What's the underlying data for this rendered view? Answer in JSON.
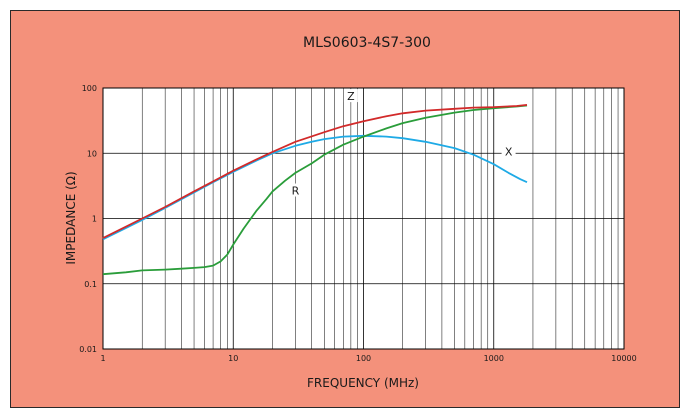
{
  "chart_data": {
    "type": "line",
    "title": "MLS0603-4S7-300",
    "xlabel": "FREQUENCY (MHz)",
    "ylabel": "IMPEDANCE (Ω)",
    "x_scale": "log",
    "y_scale": "log",
    "xlim": [
      1,
      10000
    ],
    "ylim": [
      0.01,
      100
    ],
    "x_ticks": [
      {
        "value": 1,
        "label": "1"
      },
      {
        "value": 10,
        "label": "10"
      },
      {
        "value": 100,
        "label": "100"
      },
      {
        "value": 1000,
        "label": "1000"
      },
      {
        "value": 10000,
        "label": "10000"
      }
    ],
    "y_ticks": [
      {
        "value": 0.01,
        "label": "0.01"
      },
      {
        "value": 0.1,
        "label": "0.1"
      },
      {
        "value": 1,
        "label": "1"
      },
      {
        "value": 10,
        "label": "10"
      },
      {
        "value": 100,
        "label": "100"
      }
    ],
    "grid": true,
    "legend": "none",
    "series": [
      {
        "name": "Z",
        "color": "#d22a2a",
        "label_at": {
          "x": 80,
          "y": 70
        },
        "points": [
          [
            1,
            0.5
          ],
          [
            2,
            1.0
          ],
          [
            3,
            1.5
          ],
          [
            5,
            2.6
          ],
          [
            7,
            3.7
          ],
          [
            10,
            5.4
          ],
          [
            15,
            8.0
          ],
          [
            20,
            10.5
          ],
          [
            30,
            15.0
          ],
          [
            50,
            21.0
          ],
          [
            70,
            26.0
          ],
          [
            100,
            31.0
          ],
          [
            150,
            37.0
          ],
          [
            200,
            41.0
          ],
          [
            300,
            45.0
          ],
          [
            500,
            48.0
          ],
          [
            700,
            50.0
          ],
          [
            1000,
            51.0
          ],
          [
            1500,
            53.0
          ],
          [
            1800,
            55.0
          ]
        ]
      },
      {
        "name": "R",
        "color": "#2a9d3a",
        "label_at": {
          "x": 30,
          "y": 2.5
        },
        "points": [
          [
            1,
            0.14
          ],
          [
            1.5,
            0.15
          ],
          [
            2,
            0.16
          ],
          [
            3,
            0.165
          ],
          [
            4,
            0.17
          ],
          [
            5,
            0.175
          ],
          [
            6,
            0.18
          ],
          [
            7,
            0.19
          ],
          [
            8,
            0.22
          ],
          [
            9,
            0.28
          ],
          [
            10,
            0.4
          ],
          [
            12,
            0.7
          ],
          [
            15,
            1.3
          ],
          [
            18,
            2.0
          ],
          [
            20,
            2.6
          ],
          [
            25,
            3.8
          ],
          [
            30,
            5.0
          ],
          [
            40,
            7.0
          ],
          [
            50,
            9.5
          ],
          [
            70,
            13.5
          ],
          [
            100,
            18.0
          ],
          [
            150,
            24.0
          ],
          [
            200,
            29.0
          ],
          [
            300,
            35.0
          ],
          [
            500,
            42.0
          ],
          [
            700,
            46.0
          ],
          [
            1000,
            49.0
          ],
          [
            1500,
            52.0
          ],
          [
            1800,
            54.0
          ]
        ]
      },
      {
        "name": "X",
        "color": "#1eaae6",
        "label_at": {
          "x": 1300,
          "y": 10
        },
        "points": [
          [
            1,
            0.48
          ],
          [
            2,
            0.95
          ],
          [
            3,
            1.45
          ],
          [
            5,
            2.5
          ],
          [
            7,
            3.6
          ],
          [
            10,
            5.2
          ],
          [
            15,
            7.7
          ],
          [
            20,
            10.0
          ],
          [
            30,
            13.0
          ],
          [
            40,
            15.0
          ],
          [
            50,
            16.5
          ],
          [
            70,
            18.0
          ],
          [
            100,
            18.5
          ],
          [
            150,
            18.0
          ],
          [
            200,
            17.0
          ],
          [
            300,
            15.0
          ],
          [
            500,
            12.0
          ],
          [
            700,
            9.5
          ],
          [
            1000,
            6.8
          ],
          [
            1300,
            5.0
          ],
          [
            1600,
            4.0
          ],
          [
            1800,
            3.6
          ]
        ]
      }
    ]
  }
}
